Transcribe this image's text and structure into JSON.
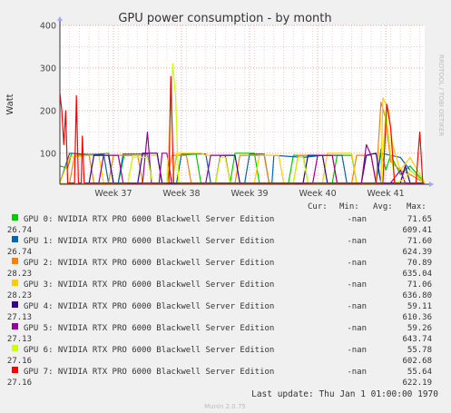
{
  "graph_title": "GPU power consumption - by month",
  "y_axis_label": "Watt",
  "side_label": "RRDTOOL / TOBI OETIKER",
  "footer_text": "Munin 2.0.75",
  "last_update_text": "Last update: Thu Jan  1 01:00:00 1970",
  "legend_headers": {
    "cur": "Cur:",
    "min": "Min:",
    "avg": "Avg:",
    "max": "Max:"
  },
  "legend": [
    {
      "name": "GPU 0: NVIDIA RTX PRO 6000 Blackwell Server Edition",
      "color": "#00cc00",
      "cur": "-nan",
      "min": "26.74",
      "avg": "71.65",
      "max": "609.41"
    },
    {
      "name": "GPU 1: NVIDIA RTX PRO 6000 Blackwell Server Edition",
      "color": "#0066b3",
      "cur": "-nan",
      "min": "26.74",
      "avg": "71.60",
      "max": "624.39"
    },
    {
      "name": "GPU 2: NVIDIA RTX PRO 6000 Blackwell Server Edition",
      "color": "#ff8000",
      "cur": "-nan",
      "min": "28.23",
      "avg": "70.89",
      "max": "635.04"
    },
    {
      "name": "GPU 3: NVIDIA RTX PRO 6000 Blackwell Server Edition",
      "color": "#ffcc00",
      "cur": "-nan",
      "min": "28.23",
      "avg": "71.06",
      "max": "636.80"
    },
    {
      "name": "GPU 4: NVIDIA RTX PRO 6000 Blackwell Server Edition",
      "color": "#330099",
      "cur": "-nan",
      "min": "27.13",
      "avg": "59.11",
      "max": "610.36"
    },
    {
      "name": "GPU 5: NVIDIA RTX PRO 6000 Blackwell Server Edition",
      "color": "#990099",
      "cur": "-nan",
      "min": "27.13",
      "avg": "59.26",
      "max": "643.74"
    },
    {
      "name": "GPU 6: NVIDIA RTX PRO 6000 Blackwell Server Edition",
      "color": "#ccff00",
      "cur": "-nan",
      "min": "27.16",
      "avg": "55.78",
      "max": "602.68"
    },
    {
      "name": "GPU 7: NVIDIA RTX PRO 6000 Blackwell Server Edition",
      "color": "#ff0000",
      "cur": "-nan",
      "min": "27.16",
      "avg": "55.64",
      "max": "622.19"
    }
  ],
  "chart_data": {
    "type": "line",
    "title": "GPU power consumption - by month",
    "ylabel": "Watt",
    "xlabel": "",
    "ylim": [
      27,
      400
    ],
    "x_range_days": [
      0,
      37.5
    ],
    "yticks": [
      100,
      200,
      300,
      400
    ],
    "xticks": [
      {
        "label": "Week 37",
        "x": 5.5
      },
      {
        "label": "Week 38",
        "x": 12.5
      },
      {
        "label": "Week 39",
        "x": 19.5
      },
      {
        "label": "Week 40",
        "x": 26.5
      },
      {
        "label": "Week 41",
        "x": 33.5
      }
    ],
    "grid": true,
    "legend_position": "bottom",
    "series": [
      {
        "name": "GPU 0",
        "color": "#00cc00",
        "points": [
          [
            0,
            70
          ],
          [
            0.8,
            65
          ],
          [
            1.2,
            100
          ],
          [
            3,
            95
          ],
          [
            5,
            100
          ],
          [
            5.5,
            30
          ],
          [
            6,
            30
          ],
          [
            6.6,
            95
          ],
          [
            9,
            95
          ],
          [
            9.5,
            30
          ],
          [
            11.5,
            30
          ],
          [
            12,
            95
          ],
          [
            14,
            98
          ],
          [
            14.5,
            30
          ],
          [
            17.5,
            30
          ],
          [
            18,
            100
          ],
          [
            20,
            100
          ],
          [
            20.5,
            30
          ],
          [
            23.5,
            30
          ],
          [
            24,
            95
          ],
          [
            25,
            95
          ],
          [
            25.5,
            30
          ],
          [
            28,
            30
          ],
          [
            28.5,
            95
          ],
          [
            30,
            95
          ],
          [
            30.5,
            30
          ],
          [
            32.5,
            30
          ],
          [
            33,
            110
          ],
          [
            33.5,
            60
          ],
          [
            34,
            95
          ],
          [
            35,
            50
          ],
          [
            36,
            70
          ],
          [
            37.5,
            30
          ]
        ]
      },
      {
        "name": "GPU 1",
        "color": "#0066b3",
        "points": [
          [
            0,
            30
          ],
          [
            1,
            100
          ],
          [
            3,
            97
          ],
          [
            4.5,
            98
          ],
          [
            5,
            30
          ],
          [
            6,
            30
          ],
          [
            6.5,
            98
          ],
          [
            9,
            98
          ],
          [
            9.5,
            30
          ],
          [
            12,
            30
          ],
          [
            12.5,
            98
          ],
          [
            15,
            98
          ],
          [
            15.5,
            30
          ],
          [
            19,
            30
          ],
          [
            19.5,
            98
          ],
          [
            21,
            98
          ],
          [
            21.5,
            30
          ],
          [
            21.8,
            30
          ],
          [
            22,
            95
          ],
          [
            25,
            90
          ],
          [
            27,
            95
          ],
          [
            29,
            95
          ],
          [
            29.5,
            30
          ],
          [
            32.5,
            30
          ],
          [
            33,
            100
          ],
          [
            35,
            90
          ],
          [
            36,
            60
          ],
          [
            37.5,
            30
          ]
        ]
      },
      {
        "name": "GPU 2",
        "color": "#ff8000",
        "points": [
          [
            0,
            30
          ],
          [
            1,
            30
          ],
          [
            1.5,
            95
          ],
          [
            3,
            95
          ],
          [
            3.5,
            30
          ],
          [
            5,
            30
          ],
          [
            5.5,
            95
          ],
          [
            8,
            95
          ],
          [
            8.5,
            30
          ],
          [
            11,
            30
          ],
          [
            11.5,
            95
          ],
          [
            13,
            95
          ],
          [
            13.5,
            30
          ],
          [
            18,
            30
          ],
          [
            18.5,
            95
          ],
          [
            21,
            95
          ],
          [
            21.5,
            30
          ],
          [
            24,
            30
          ],
          [
            24.5,
            95
          ],
          [
            28,
            95
          ],
          [
            28.5,
            30
          ],
          [
            30,
            30
          ],
          [
            30.5,
            95
          ],
          [
            32,
            95
          ],
          [
            32.5,
            30
          ],
          [
            33,
            220
          ],
          [
            33.5,
            180
          ],
          [
            34,
            80
          ],
          [
            35,
            60
          ],
          [
            36,
            50
          ],
          [
            37.5,
            30
          ]
        ]
      },
      {
        "name": "GPU 3",
        "color": "#ffcc00",
        "points": [
          [
            0,
            30
          ],
          [
            1,
            90
          ],
          [
            3,
            95
          ],
          [
            4,
            95
          ],
          [
            4.5,
            30
          ],
          [
            7,
            30
          ],
          [
            7.5,
            95
          ],
          [
            10,
            95
          ],
          [
            10.5,
            30
          ],
          [
            11.5,
            30
          ],
          [
            12,
            100
          ],
          [
            14.5,
            100
          ],
          [
            15,
            95
          ],
          [
            17,
            95
          ],
          [
            17.5,
            30
          ],
          [
            20,
            30
          ],
          [
            20.5,
            95
          ],
          [
            22.5,
            95
          ],
          [
            23,
            30
          ],
          [
            27,
            30
          ],
          [
            27.5,
            100
          ],
          [
            30,
            100
          ],
          [
            30.5,
            30
          ],
          [
            33,
            30
          ],
          [
            33.2,
            230
          ],
          [
            33.8,
            200
          ],
          [
            34.2,
            120
          ],
          [
            35,
            60
          ],
          [
            36,
            90
          ],
          [
            37.5,
            30
          ]
        ]
      },
      {
        "name": "GPU 4",
        "color": "#330099",
        "points": [
          [
            0,
            30
          ],
          [
            3,
            30
          ],
          [
            3.5,
            95
          ],
          [
            5,
            95
          ],
          [
            5.5,
            30
          ],
          [
            8,
            30
          ],
          [
            8.5,
            100
          ],
          [
            10,
            100
          ],
          [
            10.5,
            30
          ],
          [
            12,
            30
          ],
          [
            13,
            30
          ],
          [
            16,
            30
          ],
          [
            16.5,
            95
          ],
          [
            18,
            95
          ],
          [
            18.5,
            30
          ],
          [
            25,
            30
          ],
          [
            25.5,
            95
          ],
          [
            27,
            95
          ],
          [
            27.5,
            30
          ],
          [
            31,
            30
          ],
          [
            31.5,
            95
          ],
          [
            32.5,
            100
          ],
          [
            33,
            30
          ],
          [
            35,
            30
          ],
          [
            35.5,
            70
          ],
          [
            36,
            30
          ],
          [
            37.5,
            30
          ]
        ]
      },
      {
        "name": "GPU 5",
        "color": "#990099",
        "points": [
          [
            0,
            30
          ],
          [
            4,
            30
          ],
          [
            4.5,
            95
          ],
          [
            6,
            95
          ],
          [
            6.5,
            30
          ],
          [
            8.5,
            30
          ],
          [
            9,
            150
          ],
          [
            9.4,
            30
          ],
          [
            10.2,
            30
          ],
          [
            10.5,
            100
          ],
          [
            11,
            100
          ],
          [
            11.5,
            30
          ],
          [
            13,
            30
          ],
          [
            15,
            30
          ],
          [
            15.5,
            95
          ],
          [
            17,
            95
          ],
          [
            17.5,
            30
          ],
          [
            26,
            30
          ],
          [
            26.5,
            95
          ],
          [
            28,
            95
          ],
          [
            28.5,
            30
          ],
          [
            31,
            30
          ],
          [
            31.5,
            120
          ],
          [
            32,
            95
          ],
          [
            32.5,
            30
          ],
          [
            34,
            30
          ],
          [
            35,
            60
          ],
          [
            35.5,
            30
          ],
          [
            37.5,
            30
          ]
        ]
      },
      {
        "name": "GPU 6",
        "color": "#ccff00",
        "points": [
          [
            0,
            30
          ],
          [
            7,
            30
          ],
          [
            7.5,
            90
          ],
          [
            9,
            90
          ],
          [
            9.5,
            30
          ],
          [
            11,
            30
          ],
          [
            11.6,
            310
          ],
          [
            11.9,
            230
          ],
          [
            12.2,
            30
          ],
          [
            14,
            30
          ],
          [
            16,
            30
          ],
          [
            16.5,
            90
          ],
          [
            17,
            90
          ],
          [
            17.5,
            30
          ],
          [
            22,
            30
          ],
          [
            24,
            30
          ],
          [
            24.5,
            90
          ],
          [
            25,
            90
          ],
          [
            25.5,
            30
          ],
          [
            33,
            30
          ],
          [
            33.5,
            200
          ],
          [
            34,
            100
          ],
          [
            34.5,
            30
          ],
          [
            35.5,
            40
          ],
          [
            36,
            60
          ],
          [
            37.5,
            30
          ]
        ]
      },
      {
        "name": "GPU 7",
        "color": "#ff0000",
        "points": [
          [
            0,
            240
          ],
          [
            0.2,
            200
          ],
          [
            0.4,
            120
          ],
          [
            0.6,
            200
          ],
          [
            0.8,
            30
          ],
          [
            1.5,
            30
          ],
          [
            1.7,
            235
          ],
          [
            1.9,
            30
          ],
          [
            2.2,
            30
          ],
          [
            2.3,
            140
          ],
          [
            2.5,
            30
          ],
          [
            3,
            30
          ],
          [
            5,
            30
          ],
          [
            7.5,
            30
          ],
          [
            8.5,
            30
          ],
          [
            10,
            30
          ],
          [
            11.2,
            30
          ],
          [
            11.4,
            280
          ],
          [
            11.7,
            30
          ],
          [
            12,
            30
          ],
          [
            13.5,
            30
          ],
          [
            14,
            30
          ],
          [
            22,
            30
          ],
          [
            23.5,
            30
          ],
          [
            24,
            30
          ],
          [
            26,
            30
          ],
          [
            28,
            30
          ],
          [
            30,
            30
          ],
          [
            30.5,
            30
          ],
          [
            32,
            30
          ],
          [
            33.2,
            30
          ],
          [
            33.6,
            215
          ],
          [
            34,
            160
          ],
          [
            34.4,
            30
          ],
          [
            35,
            30
          ],
          [
            36,
            30
          ],
          [
            36.6,
            30
          ],
          [
            37,
            150
          ],
          [
            37.3,
            30
          ]
        ]
      }
    ]
  }
}
